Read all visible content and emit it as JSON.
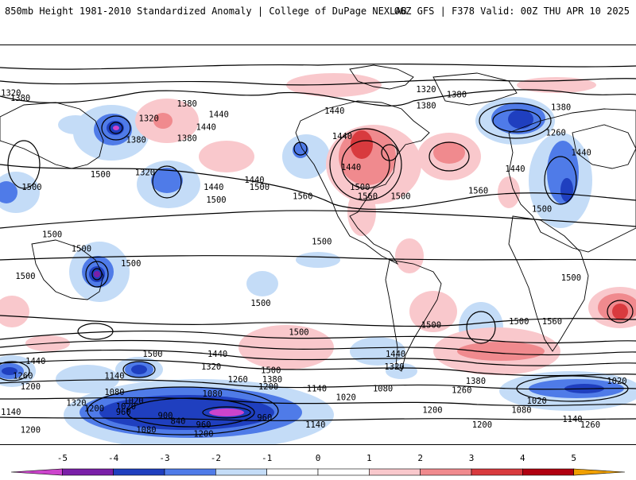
{
  "header": {
    "title_left": "850mb Height 1981-2010 Standardized Anomaly | College of DuPage NEXLAB",
    "title_right": "06Z GFS | F378 Valid: 00Z THU APR 10 2025"
  },
  "colors": {
    "neg5": "#cc44cc",
    "neg4": "#7a1fa8",
    "neg3": "#1f3fbf",
    "neg2": "#4f7be8",
    "neg1": "#c4dcf7",
    "pos1": "#f9c8cc",
    "pos2": "#f08a8e",
    "pos3": "#d83a3e",
    "pos4": "#b00010",
    "pos5": "#f0a000"
  },
  "contour_labels": [
    {
      "text": "1320",
      "lon": 4,
      "lat": 84
    },
    {
      "text": "1380",
      "lon": 16,
      "lat": 81
    },
    {
      "text": "1380",
      "lon": 147,
      "lat": 78
    },
    {
      "text": "1440",
      "lon": 172,
      "lat": 72
    },
    {
      "text": "1320",
      "lon": 117,
      "lat": 70
    },
    {
      "text": "1440",
      "lon": 162,
      "lat": 65
    },
    {
      "text": "1380",
      "lon": 107,
      "lat": 58
    },
    {
      "text": "1380",
      "lon": 147,
      "lat": 59
    },
    {
      "text": "1320",
      "lon": 114,
      "lat": 40
    },
    {
      "text": "1500",
      "lon": 79,
      "lat": 39
    },
    {
      "text": "1500",
      "lon": 25,
      "lat": 32
    },
    {
      "text": "1440",
      "lon": 200,
      "lat": 36
    },
    {
      "text": "1500",
      "lon": 204,
      "lat": 32
    },
    {
      "text": "1440",
      "lon": 168,
      "lat": 32
    },
    {
      "text": "1500",
      "lon": 170,
      "lat": 25
    },
    {
      "text": "1560",
      "lon": 238,
      "lat": 27
    },
    {
      "text": "1440",
      "lon": 263,
      "lat": 74
    },
    {
      "text": "1440",
      "lon": 269,
      "lat": 60
    },
    {
      "text": "1380",
      "lon": 335,
      "lat": 77
    },
    {
      "text": "1320",
      "lon": 335,
      "lat": 86
    },
    {
      "text": "1380",
      "lon": 359,
      "lat": 83
    },
    {
      "text": "1500",
      "lon": 283,
      "lat": 32
    },
    {
      "text": "1440",
      "lon": 276,
      "lat": 43
    },
    {
      "text": "1560",
      "lon": 289,
      "lat": 27
    },
    {
      "text": "1500",
      "lon": 315,
      "lat": 27
    },
    {
      "text": "1560",
      "lon": 376,
      "lat": 30
    },
    {
      "text": "1260",
      "lon": 437,
      "lat": 62
    },
    {
      "text": "1380",
      "lon": 441,
      "lat": 76
    },
    {
      "text": "1440",
      "lon": 457,
      "lat": 51
    },
    {
      "text": "1440",
      "lon": 405,
      "lat": 42
    },
    {
      "text": "1500",
      "lon": 426,
      "lat": 20
    },
    {
      "text": "1500",
      "lon": 253,
      "lat": 2
    },
    {
      "text": "1500",
      "lon": 41,
      "lat": 6
    },
    {
      "text": "1500",
      "lon": 64,
      "lat": -2
    },
    {
      "text": "1500",
      "lon": 103,
      "lat": -10
    },
    {
      "text": "1500",
      "lon": 20,
      "lat": -17
    },
    {
      "text": "1500",
      "lon": 205,
      "lat": -32
    },
    {
      "text": "1500",
      "lon": 235,
      "lat": -48
    },
    {
      "text": "1500",
      "lon": 339,
      "lat": -44
    },
    {
      "text": "1500",
      "lon": 408,
      "lat": -42
    },
    {
      "text": "1560",
      "lon": 434,
      "lat": -42
    },
    {
      "text": "1500",
      "lon": 120,
      "lat": -60
    },
    {
      "text": "1500",
      "lon": 449,
      "lat": -18
    },
    {
      "text": "1440",
      "lon": 28,
      "lat": -64
    },
    {
      "text": "1440",
      "lon": 171,
      "lat": -60
    },
    {
      "text": "1320",
      "lon": 166,
      "lat": -67
    },
    {
      "text": "1500",
      "lon": 213,
      "lat": -69
    },
    {
      "text": "1380",
      "lon": 214,
      "lat": -74
    },
    {
      "text": "1260",
      "lon": 187,
      "lat": -74
    },
    {
      "text": "1200",
      "lon": 211,
      "lat": -78
    },
    {
      "text": "1140",
      "lon": 249,
      "lat": -79
    },
    {
      "text": "1080",
      "lon": 167,
      "lat": -82
    },
    {
      "text": "1440",
      "lon": 311,
      "lat": -60
    },
    {
      "text": "1320",
      "lon": 310,
      "lat": -67
    },
    {
      "text": "1380",
      "lon": 374,
      "lat": -75
    },
    {
      "text": "1260",
      "lon": 363,
      "lat": -80
    },
    {
      "text": "1080",
      "lon": 301,
      "lat": -79
    },
    {
      "text": "1020",
      "lon": 272,
      "lat": -84
    },
    {
      "text": "1260",
      "lon": 18,
      "lat": -72
    },
    {
      "text": "1200",
      "lon": 24,
      "lat": -78
    },
    {
      "text": "1140",
      "lon": 90,
      "lat": -72
    },
    {
      "text": "1080",
      "lon": 90,
      "lat": -81
    },
    {
      "text": "1320",
      "lon": 60,
      "lat": -87
    },
    {
      "text": "1200",
      "lon": 74,
      "lat": -90
    },
    {
      "text": "1020",
      "lon": 105,
      "lat": -86
    },
    {
      "text": "1020",
      "lon": 99,
      "lat": -89
    },
    {
      "text": "960",
      "lon": 97,
      "lat": -92
    },
    {
      "text": "900",
      "lon": 130,
      "lat": -94
    },
    {
      "text": "840",
      "lon": 140,
      "lat": -97
    },
    {
      "text": "960",
      "lon": 160,
      "lat": -99
    },
    {
      "text": "960",
      "lon": 208,
      "lat": -95
    },
    {
      "text": "1140",
      "lon": 248,
      "lat": -99
    },
    {
      "text": "1080",
      "lon": 115,
      "lat": -102
    },
    {
      "text": "1200",
      "lon": 160,
      "lat": -104
    },
    {
      "text": "1200",
      "lon": 24,
      "lat": -102
    },
    {
      "text": "1140",
      "lon": 1,
      "lat": -92
    },
    {
      "text": "1200",
      "lon": 340,
      "lat": -91
    },
    {
      "text": "1200",
      "lon": 379,
      "lat": -99
    },
    {
      "text": "1080",
      "lon": 410,
      "lat": -91
    },
    {
      "text": "1020",
      "lon": 422,
      "lat": -86
    },
    {
      "text": "1140",
      "lon": 450,
      "lat": -96
    },
    {
      "text": "1260",
      "lon": 464,
      "lat": -99
    },
    {
      "text": "1020",
      "lon": 485,
      "lat": -75
    }
  ],
  "colorbar": {
    "ticks": [
      "-5",
      "-4",
      "-3",
      "-2",
      "-1",
      "0",
      "1",
      "2",
      "3",
      "4",
      "5"
    ]
  }
}
